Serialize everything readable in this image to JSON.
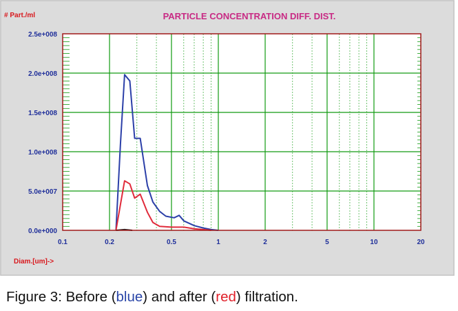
{
  "chart_data": {
    "type": "line",
    "title": "PARTICLE CONCENTRATION DIFF. DIST.",
    "ylabel": "# Part./ml",
    "xlabel": "Diam.[um]->",
    "x_scale": "log",
    "xlim": [
      0.1,
      20
    ],
    "ylim": [
      0,
      250000000
    ],
    "x_ticks": [
      {
        "value": 0.1,
        "label": "0.1"
      },
      {
        "value": 0.2,
        "label": "0.2"
      },
      {
        "value": 0.5,
        "label": "0.5"
      },
      {
        "value": 1,
        "label": "1"
      },
      {
        "value": 2,
        "label": "2"
      },
      {
        "value": 5,
        "label": "5"
      },
      {
        "value": 10,
        "label": "10"
      },
      {
        "value": 20,
        "label": "20"
      }
    ],
    "y_ticks": [
      {
        "value": 0,
        "label": "0.0e+000"
      },
      {
        "value": 50000000,
        "label": "5.0e+007"
      },
      {
        "value": 100000000,
        "label": "1.0e+008"
      },
      {
        "value": 150000000,
        "label": "1.5e+008"
      },
      {
        "value": 200000000,
        "label": "2.0e+008"
      },
      {
        "value": 250000000,
        "label": "2.5e+008"
      }
    ],
    "grid": true,
    "series": [
      {
        "color": "#2b3fa8",
        "points": [
          [
            0.22,
            0
          ],
          [
            0.235,
            110000000
          ],
          [
            0.25,
            198000000
          ],
          [
            0.27,
            190000000
          ],
          [
            0.29,
            117000000
          ],
          [
            0.315,
            117000000
          ],
          [
            0.35,
            57000000
          ],
          [
            0.38,
            36000000
          ],
          [
            0.42,
            24000000
          ],
          [
            0.46,
            18000000
          ],
          [
            0.52,
            16000000
          ],
          [
            0.56,
            19000000
          ],
          [
            0.6,
            12000000
          ],
          [
            0.7,
            6000000
          ],
          [
            0.8,
            3000000
          ],
          [
            0.9,
            1000000
          ],
          [
            1.0,
            0
          ]
        ]
      },
      {
        "color": "#e02a3a",
        "points": [
          [
            0.22,
            0
          ],
          [
            0.235,
            33000000
          ],
          [
            0.25,
            63000000
          ],
          [
            0.27,
            59000000
          ],
          [
            0.29,
            41000000
          ],
          [
            0.315,
            46000000
          ],
          [
            0.35,
            23000000
          ],
          [
            0.38,
            10000000
          ],
          [
            0.42,
            5000000
          ],
          [
            0.5,
            4000000
          ],
          [
            0.6,
            4000000
          ],
          [
            0.7,
            2000000
          ],
          [
            0.8,
            1000000
          ],
          [
            0.9,
            0
          ]
        ]
      },
      {
        "color": "#202020",
        "points": [
          [
            0.22,
            0
          ],
          [
            0.25,
            1000000
          ],
          [
            0.28,
            0
          ]
        ]
      }
    ]
  },
  "caption": {
    "prefix": "Figure 3: Before (",
    "before": "blue",
    "middle": ") and after (",
    "after": "red",
    "suffix": ") filtration."
  },
  "colors": {
    "panel_bg": "#dcdcdc",
    "plot_bg": "#ffffff",
    "plot_border": "#a01818",
    "grid": "#109a10",
    "title": "#c82a84",
    "tick_text": "#1f2f9a",
    "axis_label": "#d8181d"
  }
}
